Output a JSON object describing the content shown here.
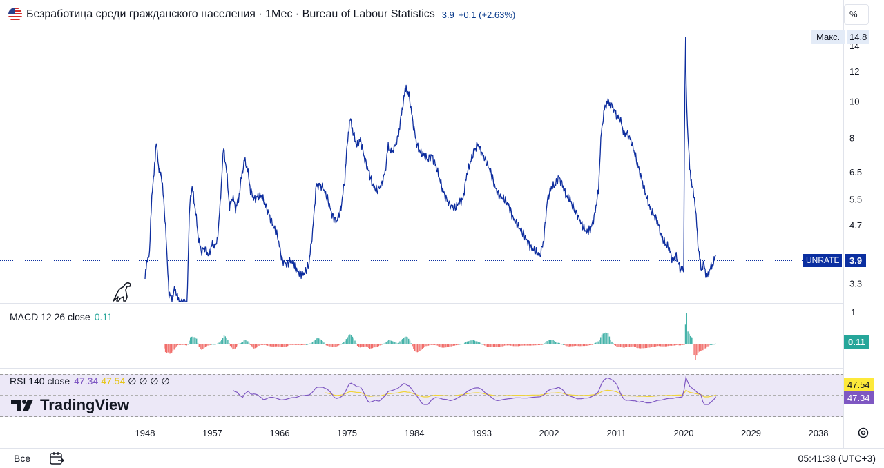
{
  "header": {
    "title": "Безработица среди гражданского населения · 1Мес · Bureau of Labour Statistics",
    "last_value": "3.9",
    "change": "+0.1 (+2.63%)",
    "percent_button": "%"
  },
  "price_scale": {
    "max_label": "Макс.",
    "max_value": "14.8",
    "ticks": [
      "14",
      "12",
      "10",
      "8",
      "6.5",
      "5.5",
      "4.7",
      "3.3"
    ],
    "series_tag": "UNRATE",
    "current_value": "3.9"
  },
  "macd": {
    "legend": "MACD 12 26 close",
    "value": "0.11",
    "scale_tick": "1"
  },
  "rsi": {
    "legend": "RSI 140 close",
    "value_a": "47.34",
    "value_b": "47.54",
    "zeros": "∅ ∅ ∅ ∅",
    "tag_b": "47.54",
    "tag_a": "47.34"
  },
  "branding": {
    "logo_text": "TradingView"
  },
  "time_axis": {
    "labels": [
      "1948",
      "1957",
      "1966",
      "1975",
      "1984",
      "1993",
      "2002",
      "2011",
      "2020",
      "2029",
      "2038"
    ]
  },
  "footer": {
    "range_label": "Все",
    "clock": "05:41:38 (UTC+3)"
  },
  "colors": {
    "series": "#0d2d9e",
    "macd_up": "#26a69a",
    "macd_down": "#ef5350",
    "rsi": "#7e57c2",
    "rsi_ma": "#f0d43a",
    "tag_bg": "#0b2fa0"
  },
  "chart_data": {
    "type": "line",
    "series": [
      {
        "name": "UNRATE",
        "x": [
          1948.0,
          1948.3,
          1948.6,
          1948.9,
          1949.2,
          1949.5,
          1949.8,
          1950.1,
          1950.5,
          1950.9,
          1951.2,
          1951.6,
          1952.0,
          1952.4,
          1952.8,
          1953.2,
          1953.6,
          1954.0,
          1954.3,
          1954.7,
          1955.1,
          1955.5,
          1956.0,
          1956.5,
          1957.0,
          1957.4,
          1957.8,
          1958.2,
          1958.5,
          1958.9,
          1959.3,
          1959.7,
          1960.1,
          1960.5,
          1960.9,
          1961.3,
          1961.7,
          1962.1,
          1962.6,
          1963.1,
          1963.6,
          1964.1,
          1964.6,
          1965.1,
          1965.7,
          1966.3,
          1966.9,
          1967.5,
          1968.1,
          1968.7,
          1969.3,
          1969.9,
          1970.4,
          1970.9,
          1971.3,
          1971.8,
          1972.4,
          1973.0,
          1973.6,
          1974.2,
          1974.7,
          1975.1,
          1975.4,
          1975.8,
          1976.3,
          1976.8,
          1977.3,
          1977.8,
          1978.4,
          1979.0,
          1979.6,
          1980.1,
          1980.5,
          1980.9,
          1981.3,
          1981.8,
          1982.2,
          1982.6,
          1982.9,
          1983.3,
          1983.8,
          1984.3,
          1984.8,
          1985.3,
          1985.8,
          1986.3,
          1986.8,
          1987.3,
          1987.8,
          1988.3,
          1988.8,
          1989.4,
          1990.0,
          1990.5,
          1991.0,
          1991.5,
          1992.0,
          1992.5,
          1993.0,
          1993.6,
          1994.2,
          1994.8,
          1995.4,
          1996.0,
          1996.6,
          1997.2,
          1997.8,
          1998.4,
          1999.0,
          1999.6,
          2000.2,
          2000.8,
          2001.3,
          2001.8,
          2002.3,
          2002.8,
          2003.3,
          2003.8,
          2004.3,
          2004.8,
          2005.3,
          2005.8,
          2006.4,
          2007.0,
          2007.6,
          2008.1,
          2008.6,
          2009.0,
          2009.4,
          2009.8,
          2010.2,
          2010.6,
          2011.0,
          2011.5,
          2012.0,
          2012.5,
          2013.0,
          2013.5,
          2014.0,
          2014.5,
          2015.0,
          2015.5,
          2016.0,
          2016.5,
          2017.0,
          2017.5,
          2018.0,
          2018.5,
          2019.0,
          2019.5,
          2020.0,
          2020.25,
          2020.33,
          2020.5,
          2020.8,
          2021.1,
          2021.5,
          2021.9,
          2022.3,
          2022.7,
          2023.1,
          2023.5,
          2023.9,
          2024.3
        ],
        "values": [
          3.4,
          3.8,
          4.0,
          5.5,
          6.5,
          7.8,
          6.6,
          6.5,
          5.5,
          4.0,
          3.1,
          3.0,
          3.2,
          3.0,
          2.9,
          3.0,
          2.6,
          5.5,
          5.9,
          5.2,
          4.4,
          4.0,
          4.1,
          3.9,
          4.2,
          4.1,
          4.5,
          6.0,
          7.5,
          6.5,
          5.2,
          5.6,
          5.2,
          5.5,
          6.3,
          7.0,
          6.6,
          5.8,
          5.5,
          5.6,
          5.6,
          5.3,
          5.0,
          4.7,
          4.4,
          3.8,
          3.7,
          3.8,
          3.6,
          3.5,
          3.5,
          3.7,
          4.5,
          6.0,
          6.0,
          5.9,
          5.5,
          5.0,
          4.8,
          5.2,
          6.2,
          8.0,
          9.0,
          8.3,
          7.6,
          7.9,
          7.1,
          6.6,
          6.0,
          5.8,
          6.0,
          6.5,
          7.6,
          7.3,
          7.5,
          8.0,
          9.0,
          10.2,
          10.8,
          10.3,
          8.8,
          7.7,
          7.3,
          7.2,
          7.0,
          7.2,
          6.8,
          6.3,
          5.8,
          5.5,
          5.3,
          5.2,
          5.4,
          5.5,
          6.4,
          6.9,
          7.4,
          7.7,
          7.3,
          6.9,
          6.5,
          5.9,
          5.6,
          5.5,
          5.3,
          4.9,
          4.7,
          4.5,
          4.3,
          4.1,
          4.0,
          3.9,
          4.3,
          5.5,
          5.9,
          6.0,
          6.3,
          6.0,
          5.6,
          5.5,
          5.2,
          5.0,
          4.7,
          4.5,
          4.6,
          5.0,
          5.8,
          8.3,
          9.5,
          10.0,
          9.8,
          9.6,
          9.1,
          9.0,
          8.2,
          8.2,
          7.8,
          7.2,
          6.6,
          6.1,
          5.6,
          5.2,
          5.0,
          4.8,
          4.4,
          4.2,
          4.1,
          3.8,
          3.9,
          3.6,
          3.6,
          14.8,
          11.1,
          8.4,
          6.7,
          6.0,
          5.4,
          4.2,
          3.6,
          3.7,
          3.4,
          3.6,
          3.7,
          3.9
        ]
      }
    ],
    "macd_last": 0.11,
    "rsi_last": 47.34,
    "rsi_ma_last": 47.54,
    "ylim": [
      2.9,
      15.2
    ],
    "xlim": [
      1942.6,
      2041.8
    ],
    "grid": false,
    "log_scale": true
  }
}
